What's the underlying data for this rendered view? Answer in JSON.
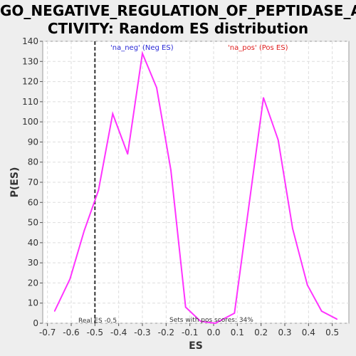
{
  "chart_data": {
    "type": "line",
    "title_line1": "GO_NEGATIVE_REGULATION_OF_PEPTIDASE_A",
    "title_line2": "CTIVITY: Random ES distribution",
    "xlabel": "ES",
    "ylabel": "P(ES)",
    "xlim": [
      -0.72,
      0.57
    ],
    "ylim": [
      0,
      140
    ],
    "x_ticks": [
      "-0.7",
      "-0.6",
      "-0.5",
      "-0.4",
      "-0.3",
      "-0.2",
      "-0.1",
      "0.0",
      "0.1",
      "0.2",
      "0.3",
      "0.4",
      "0.5"
    ],
    "y_ticks": [
      "0",
      "10",
      "20",
      "30",
      "40",
      "50",
      "60",
      "70",
      "80",
      "90",
      "100",
      "110",
      "120",
      "130",
      "140"
    ],
    "grid": true,
    "series": [
      {
        "color": "#ff33ff",
        "x": [
          -0.67,
          -0.605,
          -0.545,
          -0.485,
          -0.425,
          -0.362,
          -0.3,
          -0.24,
          -0.18,
          -0.118,
          -0.055,
          0.007,
          0.088,
          0.21,
          0.272,
          0.333,
          0.395,
          0.455,
          0.52
        ],
        "y": [
          6,
          22,
          46,
          66,
          104,
          84,
          134,
          117,
          76,
          8,
          1,
          0,
          5,
          112,
          91,
          47,
          19,
          6,
          2
        ]
      }
    ],
    "real_es_line": {
      "x": -0.5,
      "label": "Real ES -0.5",
      "color": "#333333"
    },
    "annotations": {
      "neg_label": "'na_neg' (Neg ES)",
      "neg_color": "#2a2ad6",
      "pos_label": "'na_pos' (Pos ES)",
      "pos_color": "#e02020",
      "sets_label": "Sets with pos scores: 34%"
    }
  }
}
